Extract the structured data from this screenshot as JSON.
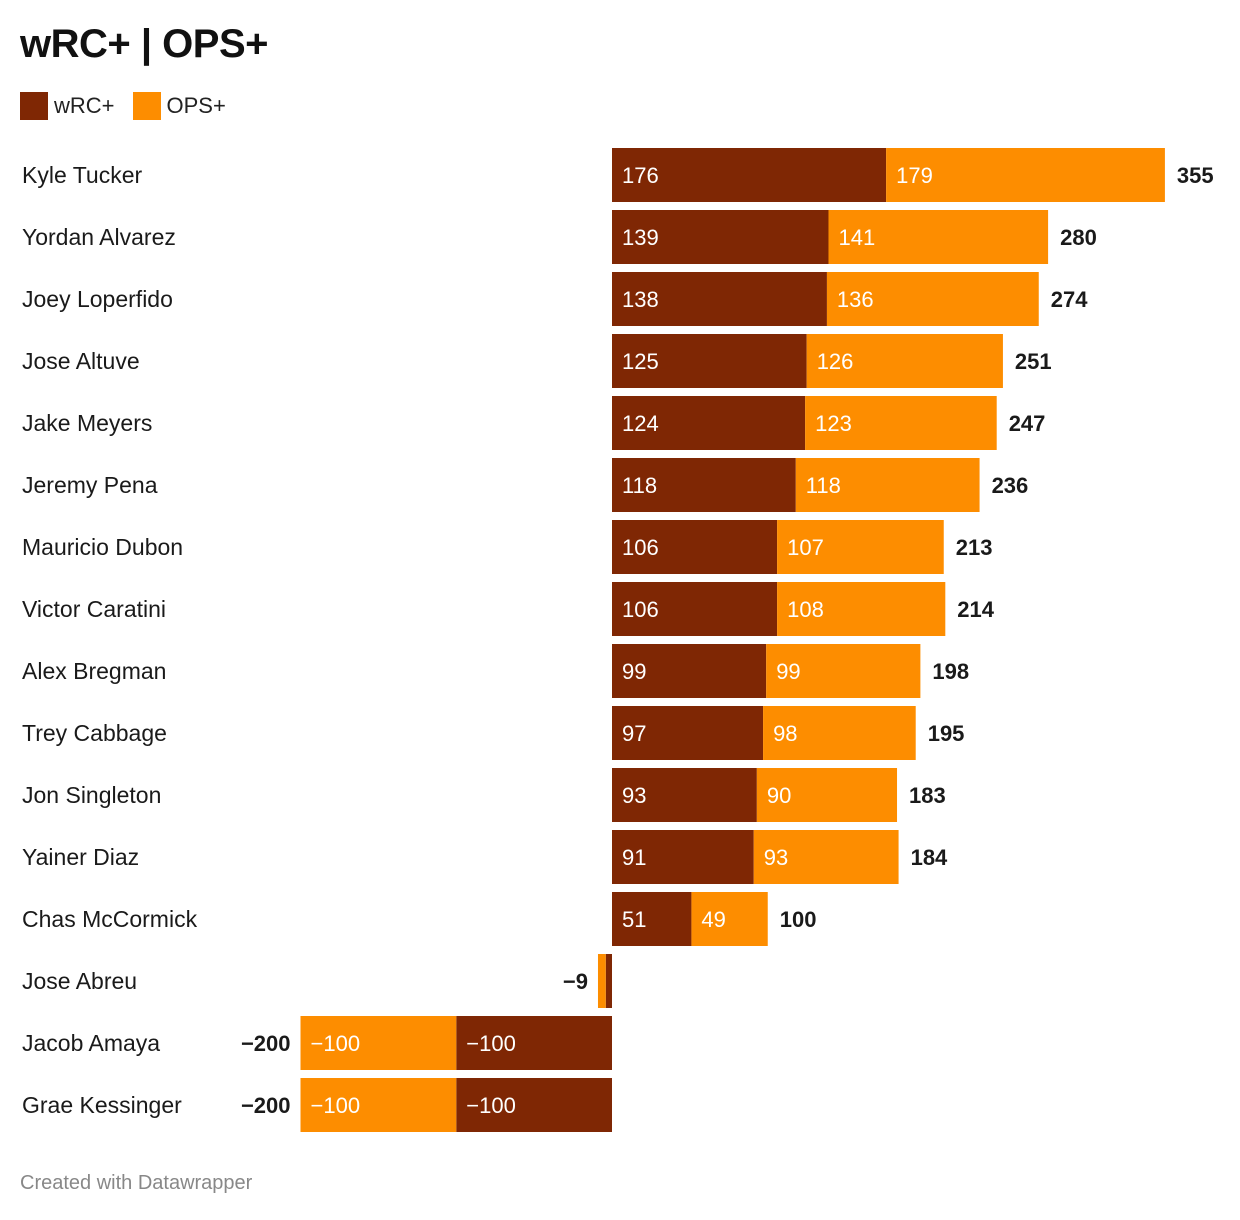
{
  "title": "wRC+ | OPS+",
  "legend": [
    {
      "name": "wRC+",
      "color": "#7f2704"
    },
    {
      "name": "OPS+",
      "color": "#fd8d00"
    }
  ],
  "footer": "Created with Datawrapper",
  "chart_data": {
    "type": "bar",
    "orientation": "horizontal",
    "stacked": true,
    "title": "wRC+ | OPS+",
    "categories": [
      "Kyle Tucker",
      "Yordan Alvarez",
      "Joey Loperfido",
      "Jose Altuve",
      "Jake Meyers",
      "Jeremy Pena",
      "Mauricio Dubon",
      "Victor Caratini",
      "Alex Bregman",
      "Trey Cabbage",
      "Jon Singleton",
      "Yainer Diaz",
      "Chas McCormick",
      "Jose Abreu",
      "Jacob Amaya",
      "Grae Kessinger"
    ],
    "series": [
      {
        "name": "wRC+",
        "color": "#7f2704",
        "values": [
          176,
          139,
          138,
          125,
          124,
          118,
          106,
          106,
          99,
          97,
          93,
          91,
          51,
          -4,
          -100,
          -100
        ]
      },
      {
        "name": "OPS+",
        "color": "#fd8d00",
        "values": [
          179,
          141,
          136,
          126,
          123,
          118,
          107,
          108,
          99,
          98,
          90,
          93,
          49,
          -5,
          -100,
          -100
        ]
      }
    ],
    "value_labels": [
      "176",
      "139",
      "138",
      "125",
      "124",
      "118",
      "106",
      "106",
      "99",
      "97",
      "93",
      "91",
      "51",
      "",
      "−100",
      "−100"
    ],
    "value_labels_ops": [
      "179",
      "141",
      "136",
      "126",
      "123",
      "118",
      "107",
      "108",
      "99",
      "98",
      "90",
      "93",
      "49",
      "",
      "−100",
      "−100"
    ],
    "totals": [
      "355",
      "280",
      "274",
      "251",
      "247",
      "236",
      "213",
      "214",
      "198",
      "195",
      "183",
      "184",
      "100",
      "−9",
      "−200",
      "−200"
    ],
    "total_values": [
      355,
      280,
      274,
      251,
      247,
      236,
      213,
      214,
      198,
      195,
      183,
      184,
      100,
      -9,
      -200,
      -200
    ],
    "legend_position": "top-left",
    "grid": false
  }
}
